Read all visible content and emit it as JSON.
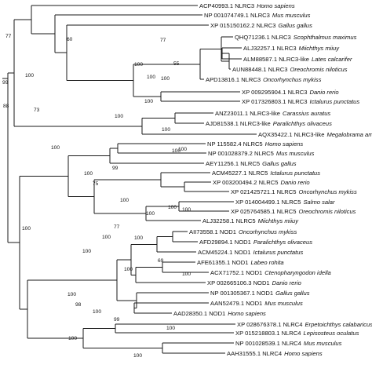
{
  "tree": {
    "taxa": [
      {
        "acc": "ACP40993.1",
        "gene": "NLRC3",
        "species": "Homo sapiens"
      },
      {
        "acc": "NP 001074749.1",
        "gene": "NLRC3",
        "species": "Mus musculus"
      },
      {
        "acc": "XP 015150162.2",
        "gene": "NLRC3",
        "species": "Gallus gallus"
      },
      {
        "acc": "QHQ71236.1",
        "gene": "NLRC3",
        "species": "Scophthalmus maximus"
      },
      {
        "acc": "ALJ32257.1",
        "gene": "NLRC3",
        "species": "Miichthys miiuy"
      },
      {
        "acc": "ALM88587.1",
        "gene": "NLRC3-like",
        "species": "Lates calcarifer"
      },
      {
        "acc": "AUN88448.1",
        "gene": "NLRC3",
        "species": "Oreochromis niloticus"
      },
      {
        "acc": "APD13816.1",
        "gene": "NLRC3",
        "species": "Oncorhynchus mykiss"
      },
      {
        "acc": "XP 009295904.1",
        "gene": "NLRC3",
        "species": "Danio rerio"
      },
      {
        "acc": "XP 017326803.1",
        "gene": "NLRC3",
        "species": "Ictalurus punctatus"
      },
      {
        "acc": "ANZ23011.1",
        "gene": "NLRC3-like",
        "species": "Carassius auratus"
      },
      {
        "acc": "AJD81538.1",
        "gene": "NLRC3-like",
        "species": "Paralichthys olivaceus"
      },
      {
        "acc": "AQX35422.1",
        "gene": "NLRC3-like",
        "species": "Megalobrama amblycephala"
      },
      {
        "acc": "NP 115582.4",
        "gene": "NLRC5",
        "species": "Homo sapiens"
      },
      {
        "acc": "NP 001028379.2",
        "gene": "NLRC5",
        "species": "Mus musculus"
      },
      {
        "acc": "AEY11256.1",
        "gene": "NLRC5",
        "species": "Gallus gallus"
      },
      {
        "acc": "ACM45227.1",
        "gene": "NLRC5",
        "species": "Ictalurus punctatus"
      },
      {
        "acc": "XP 003200494.2",
        "gene": "NLRC5",
        "species": "Danio rerio"
      },
      {
        "acc": "XP 021425721.1",
        "gene": "NLRC5",
        "species": "Oncorhynchus mykiss"
      },
      {
        "acc": "XP 014004499.1",
        "gene": "NLRC5",
        "species": "Salmo salar"
      },
      {
        "acc": "XP 025764585.1",
        "gene": "NLRC5",
        "species": "Oreochromis niloticus"
      },
      {
        "acc": "ALJ32258.1",
        "gene": "NLRC5",
        "species": "Miichthys miiuy"
      },
      {
        "acc": "AII73558.1",
        "gene": "NOD1",
        "species": "Oncorhynchus mykiss"
      },
      {
        "acc": "AFD29894.1",
        "gene": "NOD1",
        "species": "Paralichthys olivaceus"
      },
      {
        "acc": "ACM45224.1",
        "gene": "NOD1",
        "species": "Ictalurus punctatus"
      },
      {
        "acc": "AFE61355.1",
        "gene": "NOD1",
        "species": "Labeo rohita"
      },
      {
        "acc": "ACX71752.1",
        "gene": "NOD1",
        "species": "Ctenopharyngodon idella"
      },
      {
        "acc": "XP 002665106.3",
        "gene": "NOD1",
        "species": "Danio rerio"
      },
      {
        "acc": "NP 001305367.1",
        "gene": "NOD1",
        "species": "Gallus gallus"
      },
      {
        "acc": "AAN52479.1",
        "gene": "NOD1",
        "species": "Mus musculus"
      },
      {
        "acc": "AAD28350.1",
        "gene": "NOD1",
        "species": "Homo sapiens"
      },
      {
        "acc": "XP 028676378.1",
        "gene": "NLRC4",
        "species": "Erpetoichthys calabaricus"
      },
      {
        "acc": "XP 015218803.1",
        "gene": "NLRC4",
        "species": "Lepisosteus oculatus"
      },
      {
        "acc": "NP 001028539.1",
        "gene": "NLRC4",
        "species": "Mus musculus"
      },
      {
        "acc": "AAH31555.1",
        "gene": "NLRC4",
        "species": "Homo sapiens"
      }
    ],
    "support_values": [
      "77",
      "88",
      "100",
      "60",
      "77",
      "100",
      "100",
      "55",
      "100",
      "100",
      "99",
      "100",
      "73",
      "100",
      "100",
      "100",
      "100",
      "100",
      "99",
      "75",
      "100",
      "100",
      "100",
      "100",
      "100",
      "77",
      "100",
      "100",
      "100",
      "69",
      "100",
      "100",
      "100",
      "100",
      "98",
      "99",
      "100",
      "100",
      "100"
    ]
  }
}
